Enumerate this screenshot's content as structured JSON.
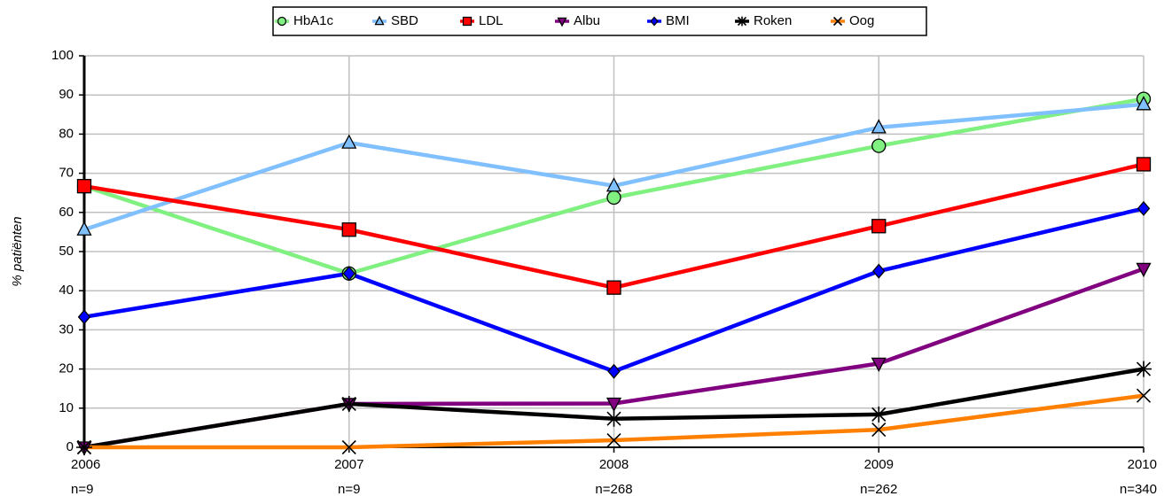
{
  "chart_data": {
    "type": "line",
    "categories": [
      "2006",
      "2007",
      "2008",
      "2009",
      "2010"
    ],
    "category_notes": [
      "n=9",
      "n=9",
      "n=268",
      "n=262",
      "n=340"
    ],
    "y_label": "% patiënten",
    "ylim": [
      0,
      100
    ],
    "yticks": [
      0,
      10,
      20,
      30,
      40,
      50,
      60,
      70,
      80,
      90,
      100
    ],
    "grid": true,
    "legend": "top",
    "series": [
      {
        "name": "HbA1c",
        "color": "#80f080",
        "marker": "circle",
        "values": [
          66.7,
          44.4,
          63.8,
          77,
          89
        ]
      },
      {
        "name": "SBD",
        "color": "#80c0ff",
        "marker": "triangle",
        "values": [
          55.6,
          77.8,
          66.8,
          81.7,
          87.6
        ]
      },
      {
        "name": "LDL",
        "color": "#ff0000",
        "marker": "square",
        "values": [
          66.7,
          55.6,
          40.8,
          56.5,
          72.3
        ]
      },
      {
        "name": "Albu",
        "color": "#800080",
        "marker": "triangle-down",
        "values": [
          0,
          11.1,
          11.2,
          21.4,
          45.6
        ]
      },
      {
        "name": "BMI",
        "color": "#0000ff",
        "marker": "diamond",
        "values": [
          33.3,
          44.4,
          19.4,
          45,
          61
        ]
      },
      {
        "name": "Roken",
        "color": "#000000",
        "marker": "star",
        "values": [
          0,
          11.1,
          7.3,
          8.4,
          20
        ]
      },
      {
        "name": "Oog",
        "color": "#ff8000",
        "marker": "x",
        "values": [
          0,
          0,
          1.8,
          4.5,
          13.2
        ]
      }
    ]
  }
}
